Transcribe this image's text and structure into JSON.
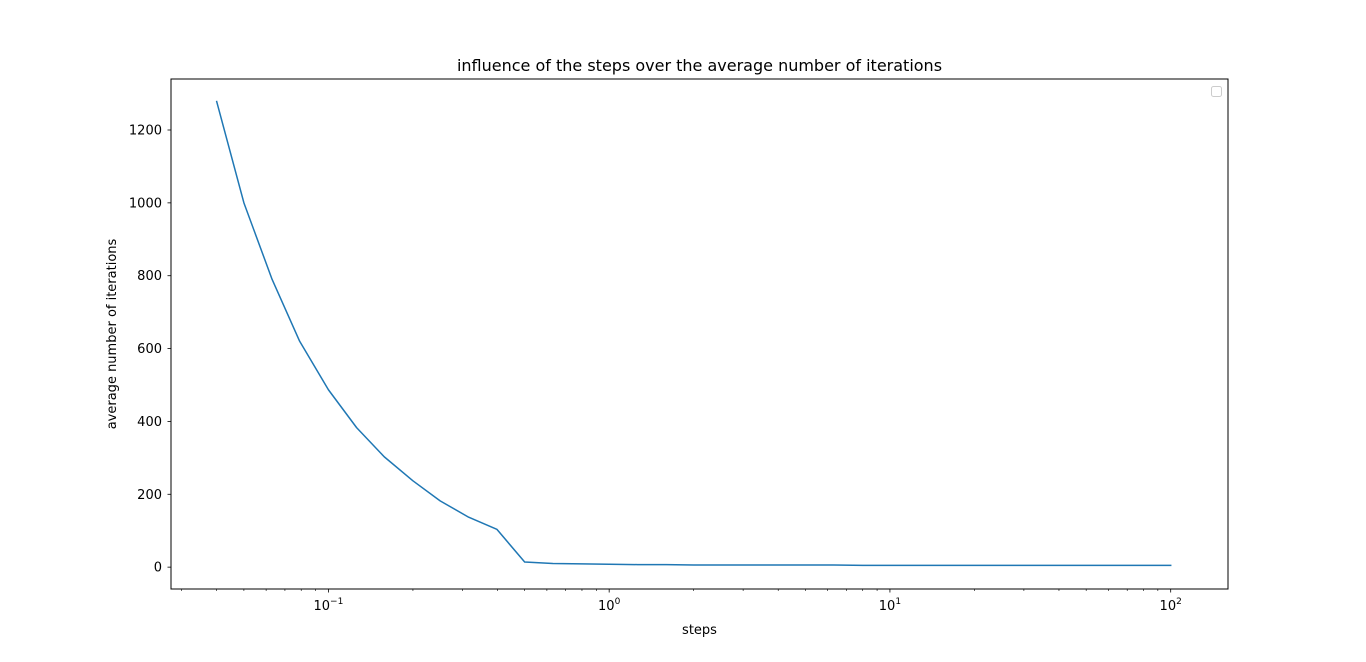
{
  "chart_data": {
    "type": "line",
    "title": "influence of the steps over the average number of iterations",
    "xlabel": "steps",
    "ylabel": "average number of iterations",
    "xscale": "log",
    "xlim": [
      0.0275,
      160
    ],
    "ylim": [
      -60,
      1340
    ],
    "x_ticks": [
      {
        "value": 0.1,
        "base": "10",
        "exp": "−1"
      },
      {
        "value": 1,
        "base": "10",
        "exp": "0"
      },
      {
        "value": 10,
        "base": "10",
        "exp": "1"
      },
      {
        "value": 100,
        "base": "10",
        "exp": "2"
      }
    ],
    "y_ticks": [
      {
        "value": 0,
        "label": "0"
      },
      {
        "value": 200,
        "label": "200"
      },
      {
        "value": 400,
        "label": "400"
      },
      {
        "value": 600,
        "label": "600"
      },
      {
        "value": 800,
        "label": "800"
      },
      {
        "value": 1000,
        "label": "1000"
      },
      {
        "value": 1200,
        "label": "1200"
      }
    ],
    "grid": false,
    "legend": {
      "placement": "upper right",
      "entries": []
    },
    "series": [
      {
        "color": "#1f77b4",
        "x": [
          0.04,
          0.05,
          0.063,
          0.079,
          0.1,
          0.126,
          0.158,
          0.2,
          0.25,
          0.316,
          0.398,
          0.5,
          0.63,
          0.8,
          1,
          1.26,
          1.6,
          2,
          2.5,
          3.2,
          4,
          5,
          6.3,
          8,
          10,
          12.6,
          16,
          20,
          25,
          32,
          40,
          50,
          63,
          80,
          100
        ],
        "y": [
          1278,
          1000,
          790,
          620,
          487,
          383,
          303,
          237,
          182,
          137,
          104,
          14,
          10,
          9,
          8,
          7,
          7,
          6,
          6,
          6,
          6,
          6,
          6,
          5,
          5,
          5,
          5,
          5,
          5,
          5,
          5,
          5,
          5,
          5,
          5
        ]
      }
    ]
  }
}
